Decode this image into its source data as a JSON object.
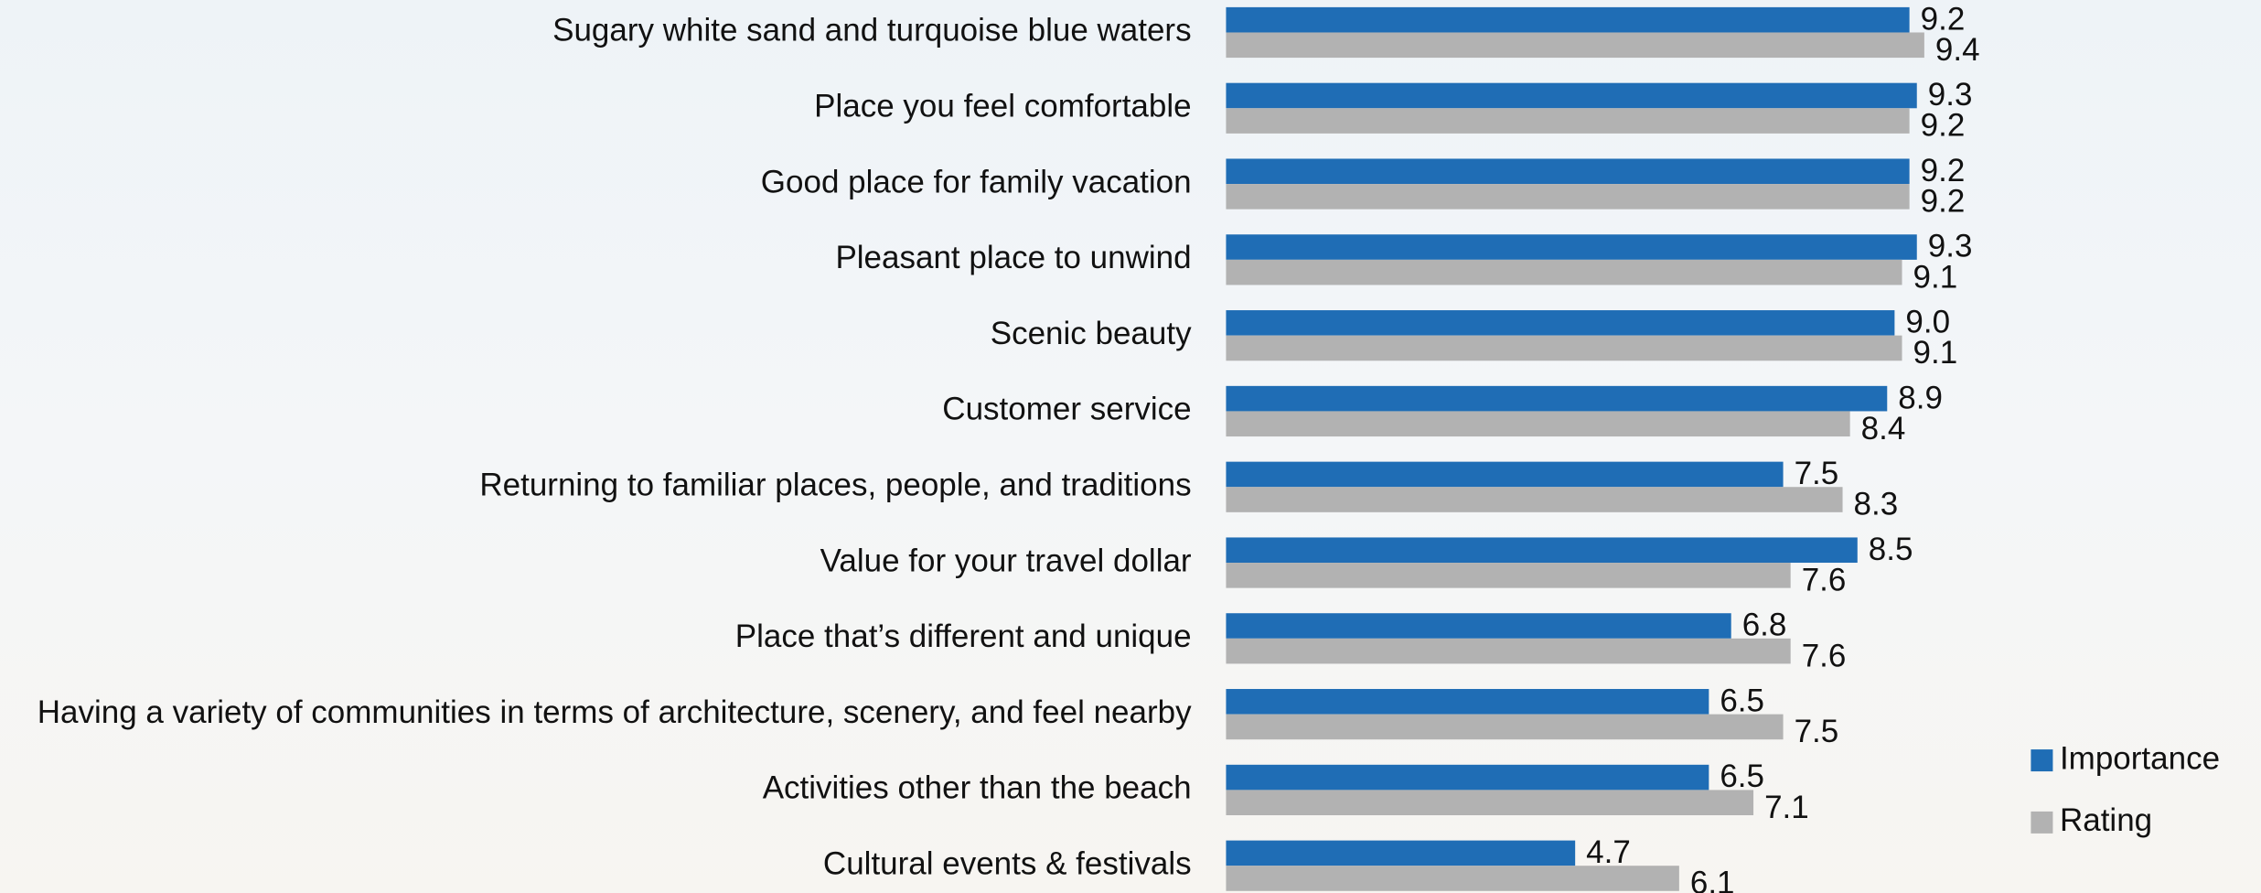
{
  "chart_data": {
    "type": "hbar",
    "categories": [
      "Sugary white sand and turquoise blue waters",
      "Place you feel comfortable",
      "Good place for family vacation",
      "Pleasant place to unwind",
      "Scenic beauty",
      "Customer service",
      "Returning to familiar places, people, and traditions",
      "Value for your travel dollar",
      "Place that’s different and unique",
      "Having a variety of communities in terms of architecture, scenery, and feel nearby",
      "Activities other than the beach",
      "Cultural events & festivals"
    ],
    "series": [
      {
        "name": "Importance",
        "color": "#1f6db5",
        "values": [
          9.2,
          9.3,
          9.2,
          9.3,
          9.0,
          8.9,
          7.5,
          8.5,
          6.8,
          6.5,
          6.5,
          4.7
        ],
        "value_labels": [
          "9.2",
          "9.3",
          "9.2",
          "9.3",
          "9.0",
          "8.9",
          "7.5",
          "8.5",
          "6.8",
          "6.5",
          "6.5",
          "4.7"
        ]
      },
      {
        "name": "Rating",
        "color": "#b2b2b2",
        "values": [
          9.4,
          9.2,
          9.2,
          9.1,
          9.1,
          8.4,
          8.3,
          7.6,
          7.6,
          7.5,
          7.1,
          6.1
        ],
        "value_labels": [
          "9.4",
          "9.2",
          "9.2",
          "9.1",
          "9.1",
          "8.4",
          "8.3",
          "7.6",
          "7.6",
          "7.5",
          "7.1",
          "6.1"
        ]
      }
    ],
    "xlim": [
      0,
      10
    ],
    "legend": "bottom-right"
  }
}
